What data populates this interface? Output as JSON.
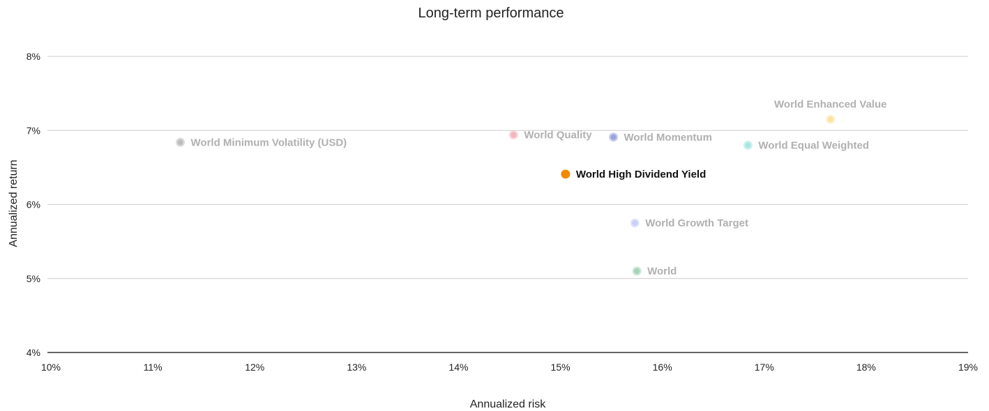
{
  "chart_data": {
    "type": "scatter",
    "title": "Long-term performance",
    "xlabel": "Annualized risk",
    "ylabel": "Annualized return",
    "xlim": [
      10,
      19
    ],
    "ylim": [
      4,
      8
    ],
    "x_ticks": [
      "10%",
      "11%",
      "12%",
      "13%",
      "14%",
      "15%",
      "16%",
      "17%",
      "18%",
      "19%"
    ],
    "y_ticks": [
      "4%",
      "5%",
      "6%",
      "7%",
      "8%"
    ],
    "grid": true,
    "points": [
      {
        "name": "World Minimum Volatility (USD)",
        "x": 11.27,
        "y": 6.84,
        "color": "#bdbdbd",
        "highlighted": false,
        "label_pos": "right"
      },
      {
        "name": "World Quality",
        "x": 14.54,
        "y": 6.94,
        "color": "#f4b3bd",
        "highlighted": false,
        "label_pos": "right"
      },
      {
        "name": "World Momentum",
        "x": 15.52,
        "y": 6.91,
        "color": "#9aa3dc",
        "highlighted": false,
        "label_pos": "right"
      },
      {
        "name": "World Enhanced Value",
        "x": 17.65,
        "y": 7.15,
        "color": "#fbe3a1",
        "highlighted": false,
        "label_pos": "above"
      },
      {
        "name": "World Equal Weighted",
        "x": 16.84,
        "y": 6.8,
        "color": "#a6e6e0",
        "highlighted": false,
        "label_pos": "right"
      },
      {
        "name": "World High Dividend Yield",
        "x": 15.05,
        "y": 6.41,
        "color": "#f08a00",
        "highlighted": true,
        "label_pos": "right"
      },
      {
        "name": "World Growth Target",
        "x": 15.73,
        "y": 5.75,
        "color": "#c9cff5",
        "highlighted": false,
        "label_pos": "right"
      },
      {
        "name": "World",
        "x": 15.75,
        "y": 5.1,
        "color": "#a4d3b6",
        "highlighted": false,
        "label_pos": "right"
      }
    ],
    "label_color_muted": "#b0b0b0",
    "label_color_highlight": "#111111"
  }
}
